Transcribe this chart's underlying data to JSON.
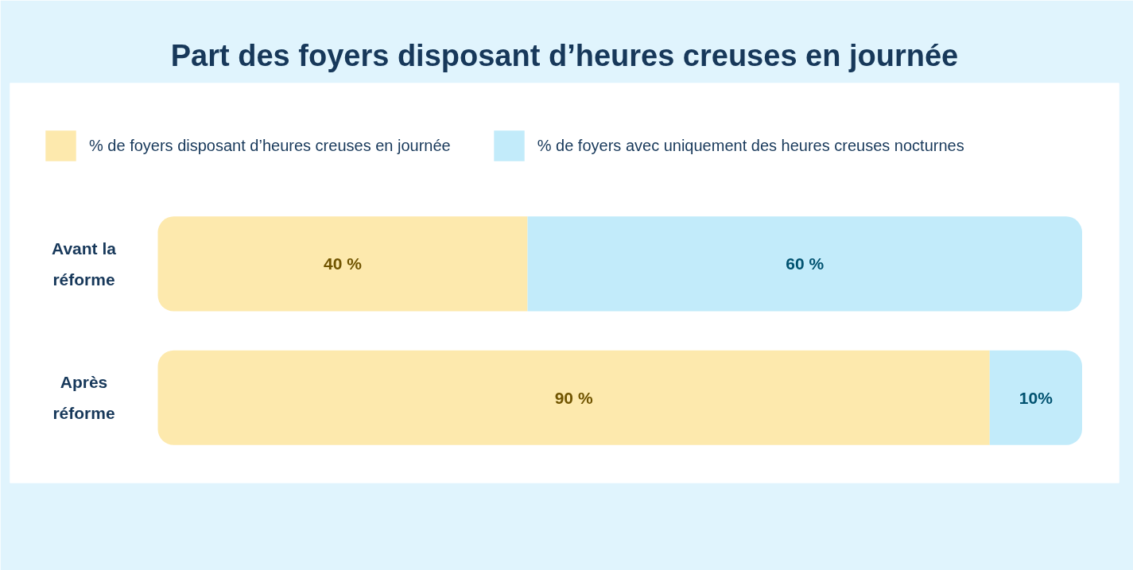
{
  "chart_data": {
    "type": "bar",
    "orientation": "horizontal",
    "stacked": true,
    "title": "Part des foyers disposant d’heures creuses en journée",
    "categories": [
      "Avant la réforme",
      "Après réforme"
    ],
    "series": [
      {
        "name": "% de foyers disposant d’heures creuses en journée",
        "color": "#fde9ad",
        "values": [
          40,
          90
        ],
        "value_labels": [
          "40 %",
          "90 %"
        ]
      },
      {
        "name": "% de foyers avec uniquement des heures creuses nocturnes",
        "color": "#c2ebfa",
        "values": [
          60,
          10
        ],
        "value_labels": [
          "60 %",
          "10%"
        ]
      }
    ],
    "legend": "top"
  }
}
